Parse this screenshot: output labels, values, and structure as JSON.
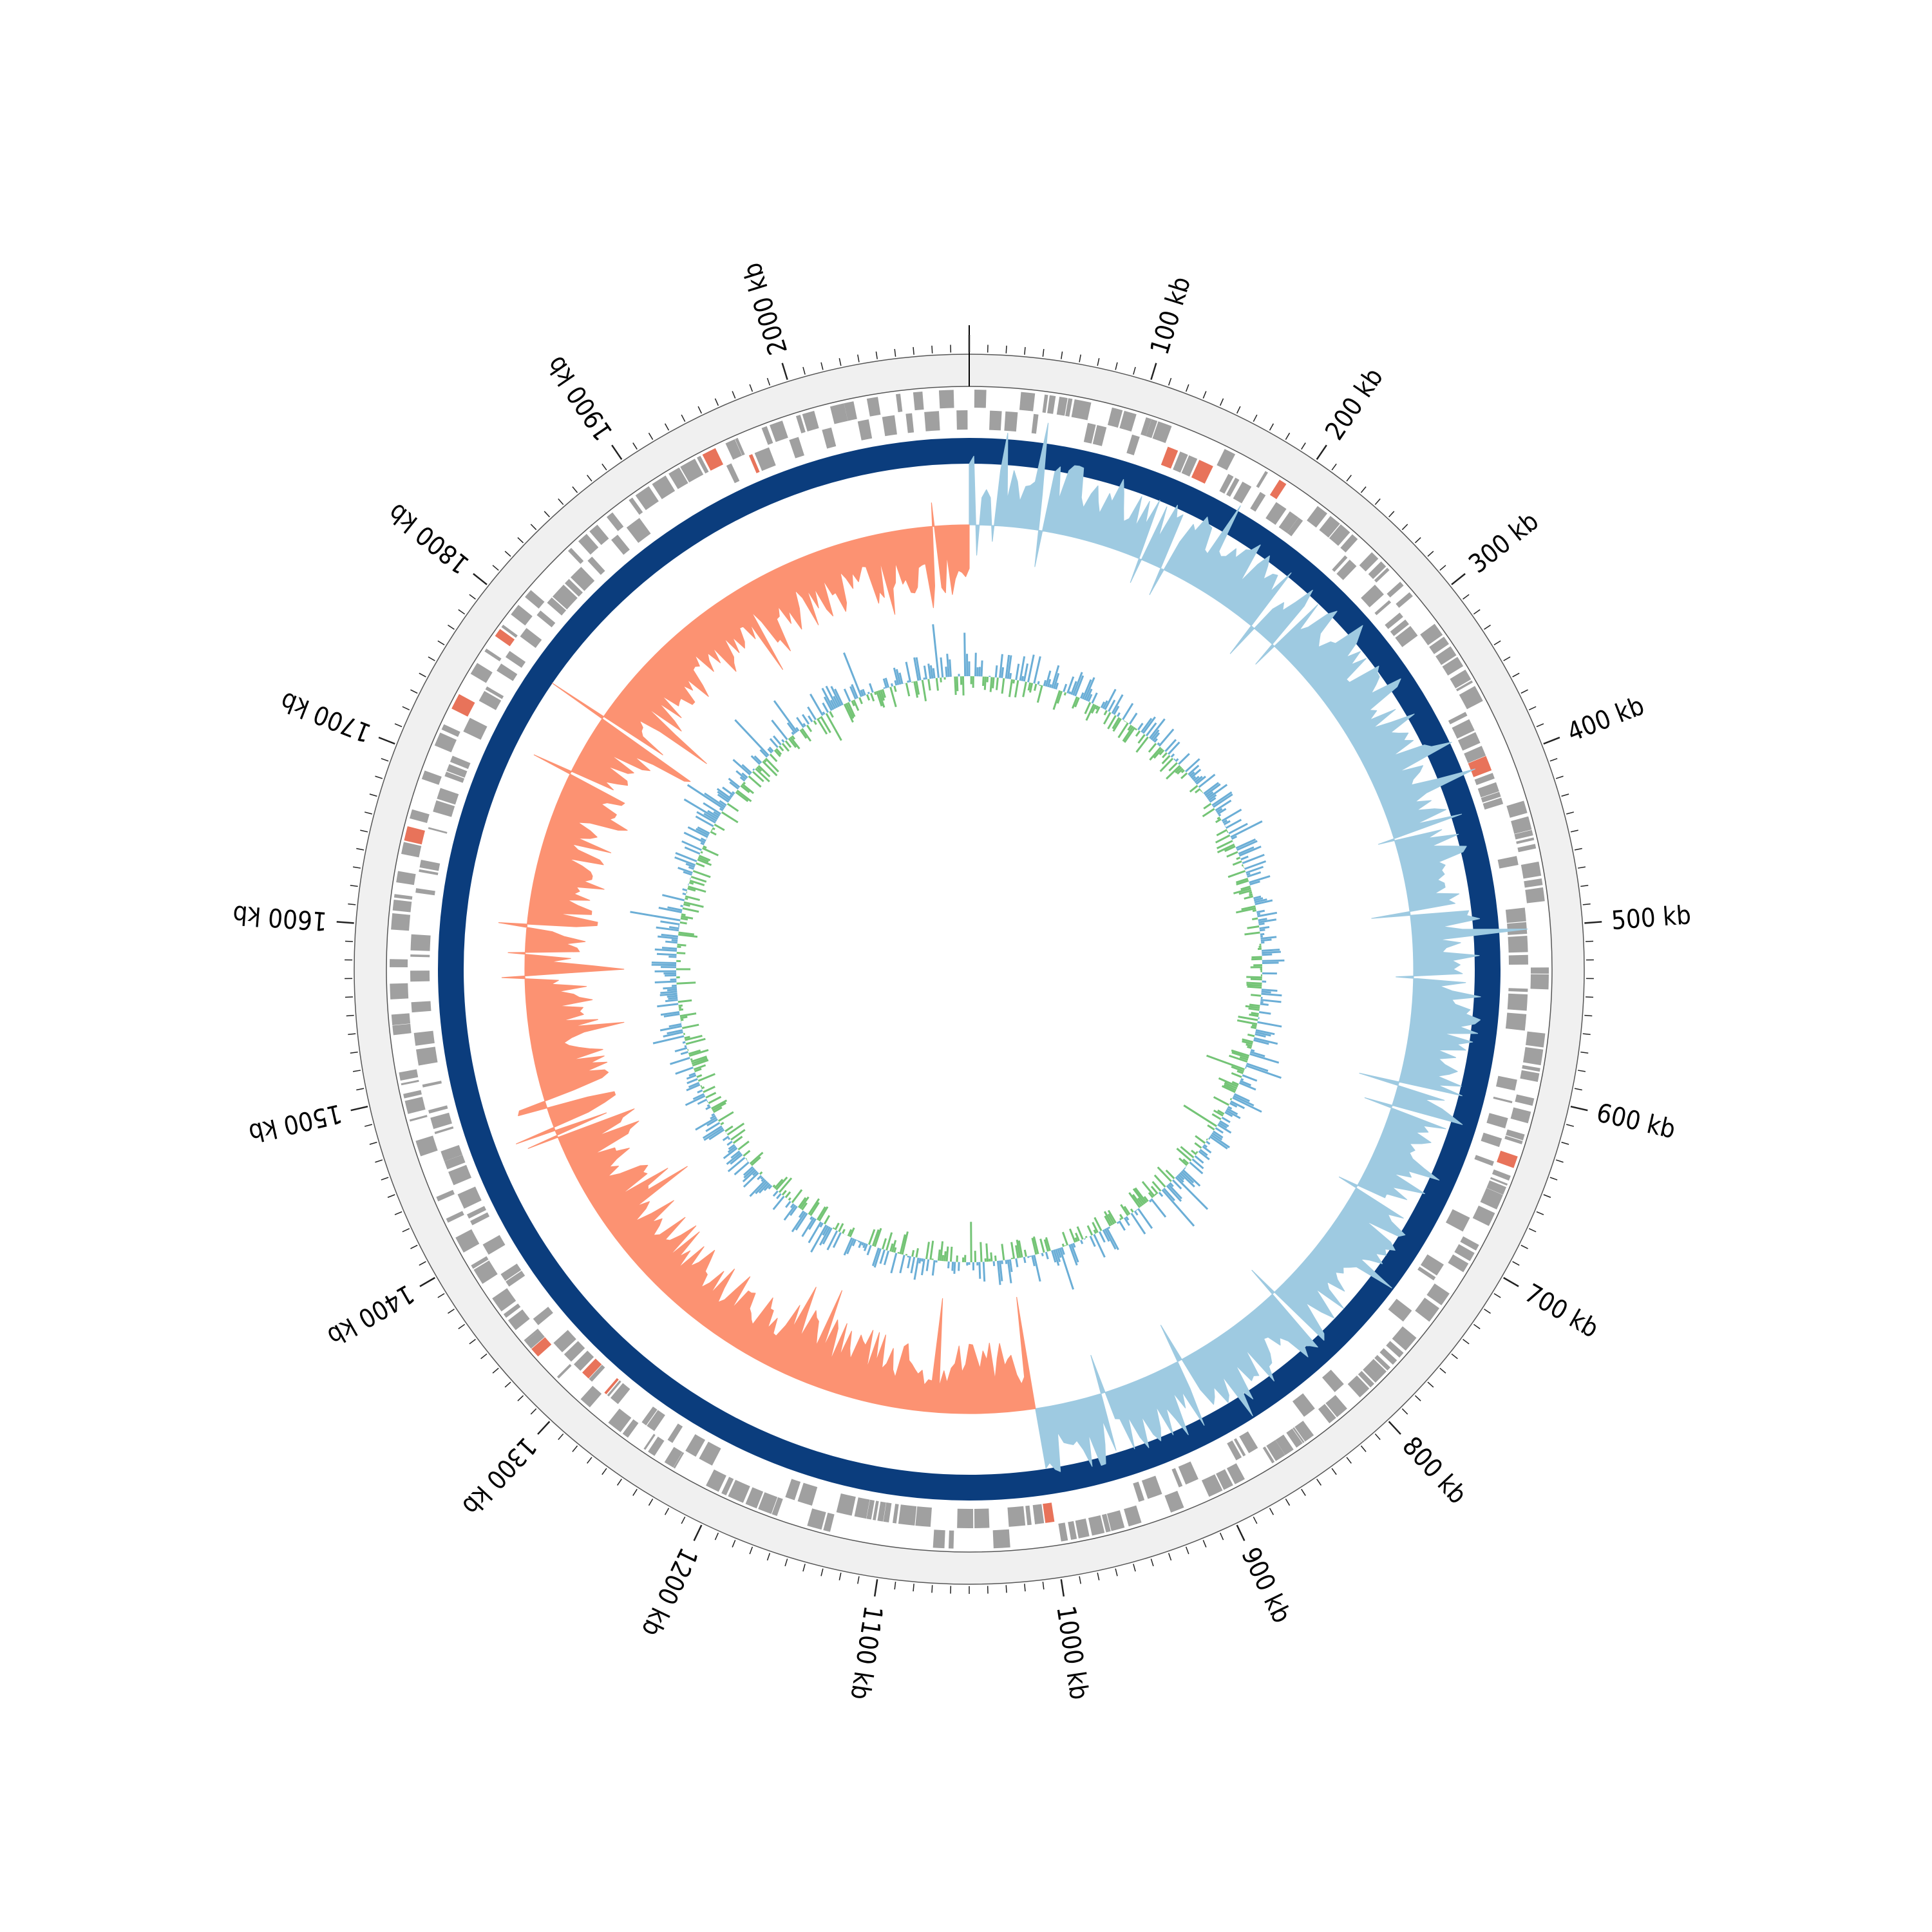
{
  "genome": {
    "length_kb": 2100,
    "major_tick_interval_kb": 100,
    "minor_tick_interval_kb": 10
  },
  "tick_labels": [
    "100 kb",
    "200 kb",
    "300 kb",
    "400 kb",
    "500 kb",
    "600 kb",
    "700 kb",
    "800 kb",
    "900 kb",
    "1000 kb",
    "1100 kb",
    "1200 kb",
    "1300 kb",
    "1400 kb",
    "1500 kb",
    "1600 kb",
    "1700 kb",
    "1800 kb",
    "1900 kb",
    "2000 kb"
  ],
  "tracks": {
    "outer_band": {
      "color": "#f0f0f0"
    },
    "cds": {
      "color": "#a0a0a0",
      "highlight_color": "#e8735a"
    },
    "backbone": {
      "color": "#0b3d7d"
    },
    "gc_skew": {
      "positive_color": "#9ecae1",
      "negative_color": "#fc9272",
      "positive_end_kb": 1000
    },
    "gc_content": {
      "positive_color": "#6baed6",
      "negative_color": "#74c476"
    }
  }
}
